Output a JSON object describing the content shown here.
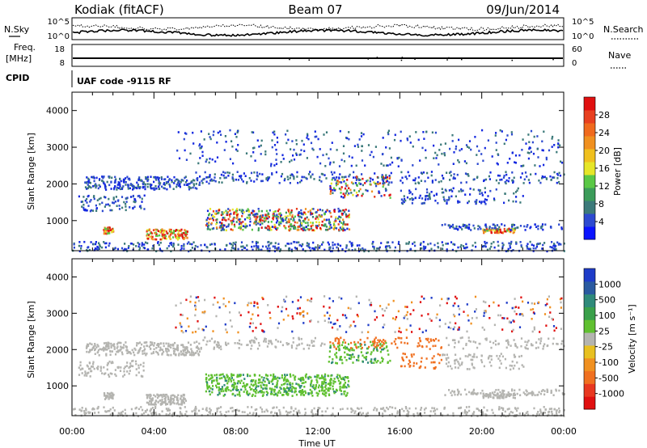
{
  "header": {
    "station": "Kodiak (fitACF)",
    "beam": "Beam 07",
    "date": "09/Jun/2014"
  },
  "labels": {
    "n_sky": "N.Sky",
    "n_search": "N.Search",
    "freq": "Freq.",
    "freq_unit": "[MHz]",
    "nave": "Nave",
    "cpid": "CPID",
    "cpid_text": "UAF code -9115 RF",
    "time_axis": "Time UT"
  },
  "colors": {
    "velocity_high": "#1010c0",
    "velocity_low": "#e02020",
    "ground_scatter": "#b4b4b0",
    "power_high": "#e01010"
  },
  "chart_data": [
    {
      "type": "line",
      "name": "noise",
      "left_ticks": [
        "10^5",
        "10^0"
      ],
      "right_ticks": [
        "10^5",
        "10^0"
      ],
      "ylabel_left": "N.Sky",
      "ylabel_right": "N.Search"
    },
    {
      "type": "line",
      "name": "frequency-nave",
      "left_ticks": [
        "18",
        "8"
      ],
      "right_ticks": [
        "60",
        "0"
      ],
      "ylabel_left": "Freq. [MHz]",
      "ylabel_right": "Nave",
      "ylim_left": [
        8,
        18
      ],
      "ylim_right": [
        0,
        60
      ]
    },
    {
      "type": "heatmap",
      "name": "power",
      "xlabel": "",
      "ylabel": "Slant Range [km]",
      "ylim": [
        180,
        4500
      ],
      "yticks": [
        "1000",
        "2000",
        "3000",
        "4000"
      ],
      "colorbar_label": "Power [dB]",
      "colorbar_ticks": [
        "4",
        "8",
        "12",
        "16",
        "20",
        "24",
        "28"
      ],
      "colorbar_colors": [
        "#0a14ff",
        "#2d4ad0",
        "#3c7a7a",
        "#3c9c5a",
        "#5ac846",
        "#e6e628",
        "#f0c01e",
        "#f09020",
        "#f06a1e",
        "#e84020",
        "#e01010"
      ]
    },
    {
      "type": "heatmap",
      "name": "velocity",
      "xlabel": "Time UT",
      "ylabel": "Slant Range [km]",
      "ylim": [
        180,
        4500
      ],
      "yticks": [
        "1000",
        "2000",
        "3000",
        "4000"
      ],
      "colorbar_label": "Velocity [m s⁻¹]",
      "colorbar_ticks": [
        "1000",
        "500",
        "100",
        "25",
        "-25",
        "-100",
        "-500",
        "-1000"
      ],
      "colorbar_colors": [
        "#1e3cc8",
        "#2a5aa0",
        "#2f8a7a",
        "#3aa04a",
        "#60c030",
        "#b4b4b0",
        "#e8c020",
        "#f09020",
        "#f07020",
        "#e83820",
        "#e01010"
      ]
    }
  ],
  "time_axis": {
    "ticks": [
      "00:00",
      "04:00",
      "08:00",
      "12:00",
      "16:00",
      "20:00",
      "00:00"
    ],
    "range_hours": [
      0,
      24
    ]
  }
}
